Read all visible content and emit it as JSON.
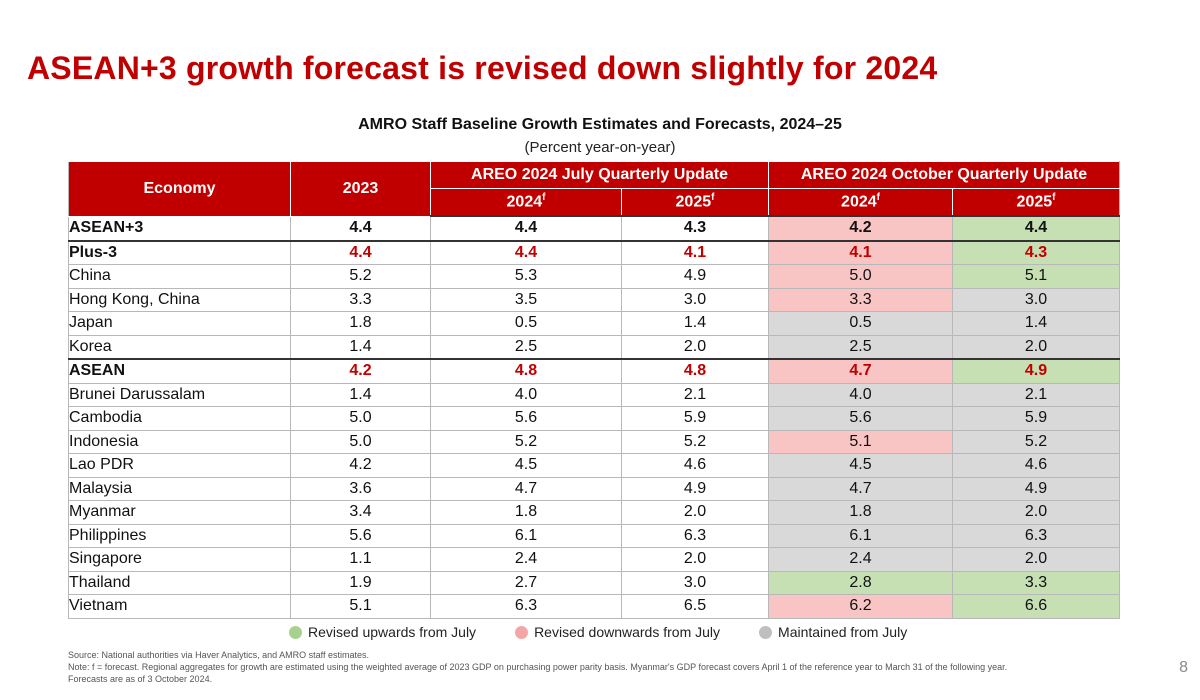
{
  "title": "ASEAN+3 growth forecast is revised down slightly for 2024",
  "table_title": "AMRO Staff Baseline Growth Estimates and Forecasts, 2024–25",
  "table_unit": "(Percent year-on-year)",
  "columns": {
    "economy": "Economy",
    "y2023": "2023",
    "july_group": "AREO 2024 July Quarterly Update",
    "oct_group": "AREO 2024 October Quarterly Update",
    "y2024": "2024",
    "y2025": "2025",
    "forecast_mark": "f"
  },
  "rows": [
    {
      "name": "ASEAN+3",
      "y2023": "4.4",
      "jul2024": "4.4",
      "jul2025": "4.3",
      "oct2024": "4.2",
      "oct2025": "4.4"
    },
    {
      "name": "Plus-3",
      "y2023": "4.4",
      "jul2024": "4.4",
      "jul2025": "4.1",
      "oct2024": "4.1",
      "oct2025": "4.3"
    },
    {
      "name": "China",
      "y2023": "5.2",
      "jul2024": "5.3",
      "jul2025": "4.9",
      "oct2024": "5.0",
      "oct2025": "5.1"
    },
    {
      "name": "Hong Kong, China",
      "y2023": "3.3",
      "jul2024": "3.5",
      "jul2025": "3.0",
      "oct2024": "3.3",
      "oct2025": "3.0"
    },
    {
      "name": "Japan",
      "y2023": "1.8",
      "jul2024": "0.5",
      "jul2025": "1.4",
      "oct2024": "0.5",
      "oct2025": "1.4"
    },
    {
      "name": "Korea",
      "y2023": "1.4",
      "jul2024": "2.5",
      "jul2025": "2.0",
      "oct2024": "2.5",
      "oct2025": "2.0"
    },
    {
      "name": "ASEAN",
      "y2023": "4.2",
      "jul2024": "4.8",
      "jul2025": "4.8",
      "oct2024": "4.7",
      "oct2025": "4.9"
    },
    {
      "name": "Brunei Darussalam",
      "y2023": "1.4",
      "jul2024": "4.0",
      "jul2025": "2.1",
      "oct2024": "4.0",
      "oct2025": "2.1"
    },
    {
      "name": "Cambodia",
      "y2023": "5.0",
      "jul2024": "5.6",
      "jul2025": "5.9",
      "oct2024": "5.6",
      "oct2025": "5.9"
    },
    {
      "name": "Indonesia",
      "y2023": "5.0",
      "jul2024": "5.2",
      "jul2025": "5.2",
      "oct2024": "5.1",
      "oct2025": "5.2"
    },
    {
      "name": "Lao PDR",
      "y2023": "4.2",
      "jul2024": "4.5",
      "jul2025": "4.6",
      "oct2024": "4.5",
      "oct2025": "4.6"
    },
    {
      "name": "Malaysia",
      "y2023": "3.6",
      "jul2024": "4.7",
      "jul2025": "4.9",
      "oct2024": "4.7",
      "oct2025": "4.9"
    },
    {
      "name": "Myanmar",
      "y2023": "3.4",
      "jul2024": "1.8",
      "jul2025": "2.0",
      "oct2024": "1.8",
      "oct2025": "2.0"
    },
    {
      "name": "Philippines",
      "y2023": "5.6",
      "jul2024": "6.1",
      "jul2025": "6.3",
      "oct2024": "6.1",
      "oct2025": "6.3"
    },
    {
      "name": "Singapore",
      "y2023": "1.1",
      "jul2024": "2.4",
      "jul2025": "2.0",
      "oct2024": "2.4",
      "oct2025": "2.0"
    },
    {
      "name": "Thailand",
      "y2023": "1.9",
      "jul2024": "2.7",
      "jul2025": "3.0",
      "oct2024": "2.8",
      "oct2025": "3.3"
    },
    {
      "name": "Vietnam",
      "y2023": "5.1",
      "jul2024": "6.3",
      "jul2025": "6.5",
      "oct2024": "6.2",
      "oct2025": "6.6"
    }
  ],
  "legend": {
    "up": "Revised upwards from July",
    "down": "Revised downwards from July",
    "same": "Maintained from July"
  },
  "colors": {
    "header_red": "#c00000",
    "up_green": "#c6e0b4",
    "down_pink": "#f8c4c4",
    "same_gray": "#d9d9d9",
    "dot_up": "#a9d18e",
    "dot_down": "#f4a6a6",
    "dot_same": "#bfbfbf"
  },
  "source": "Source: National authorities via Haver Analytics, and AMRO staff estimates.",
  "note": "Note: f = forecast. Regional aggregates for growth are estimated using the weighted average of 2023 GDP on purchasing power parity basis. Myanmar's GDP forecast covers April 1 of the reference year to March 31 of the following year. Forecasts are as of 3 October 2024.",
  "page_number": "8"
}
